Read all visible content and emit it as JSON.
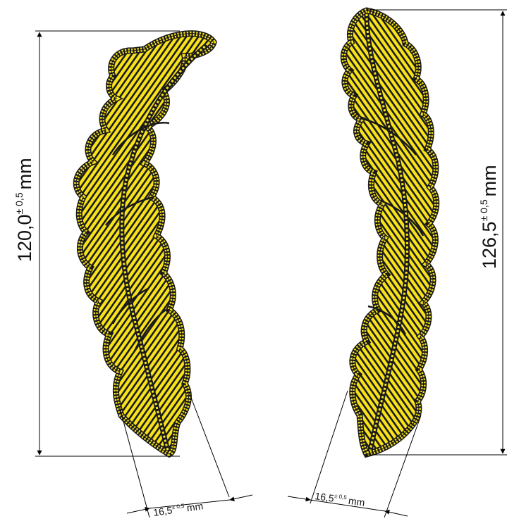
{
  "dimensions": {
    "left_height": {
      "base": "120,0",
      "tol": "± 0,5",
      "unit": "mm"
    },
    "right_height": {
      "base": "126,5",
      "tol": "± 0,5",
      "unit": "mm"
    },
    "left_width": {
      "base": "16,5",
      "tol": "± 0,5",
      "unit": "mm"
    },
    "right_width": {
      "base": "16,5",
      "tol": "± 0,5",
      "unit": "mm"
    }
  },
  "colors": {
    "leaf_fill": "#F7E21B",
    "outline": "#1a1a1a",
    "line": "#000000"
  }
}
